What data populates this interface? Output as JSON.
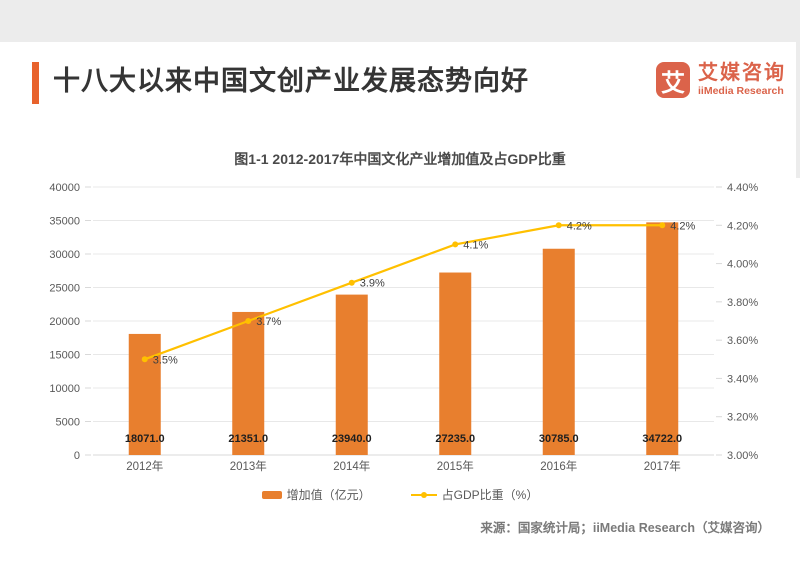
{
  "header": {
    "title": "十八大以来中国文创产业发展态势向好"
  },
  "logo": {
    "icon_char": "艾",
    "name_cn": "艾媒咨询",
    "name_en": "iiMedia Research"
  },
  "source_note": "来源：国家统计局；iiMedia Research（艾媒咨询）",
  "colors": {
    "accent_bar": "#E8622C",
    "bar_fill": "#E87F2E",
    "line": "#FFC000",
    "logo": "#DB634A",
    "grid": "#E8E8E8",
    "axis_line": "#D9D9D9",
    "tick_text": "#595959",
    "bar_label_text": "#1F1F1F",
    "line_label_text": "#404040",
    "top_band": "#ECECEC"
  },
  "chart_data": {
    "type": "bar",
    "combo": "bar+line",
    "title": "图1-1 2012-2017年中国文化产业增加值及占GDP比重",
    "categories": [
      "2012年",
      "2013年",
      "2014年",
      "2015年",
      "2016年",
      "2017年"
    ],
    "series": [
      {
        "name": "增加值（亿元）",
        "type": "bar",
        "axis": "left",
        "values": [
          18071.0,
          21351.0,
          23940.0,
          27235.0,
          30785.0,
          34722.0
        ],
        "labels": [
          "18071.0",
          "21351.0",
          "23940.0",
          "27235.0",
          "30785.0",
          "34722.0"
        ],
        "color": "#E87F2E"
      },
      {
        "name": "占GDP比重（%）",
        "type": "line",
        "axis": "right",
        "values": [
          3.5,
          3.7,
          3.9,
          4.1,
          4.2,
          4.2
        ],
        "labels": [
          "3.5%",
          "3.7%",
          "3.9%",
          "4.1%",
          "4.2%",
          "4.2%"
        ],
        "color": "#FFC000"
      }
    ],
    "left_axis": {
      "min": 0,
      "max": 40000,
      "step": 5000,
      "ticks": [
        "0",
        "5000",
        "10000",
        "15000",
        "20000",
        "25000",
        "30000",
        "35000",
        "40000"
      ]
    },
    "right_axis": {
      "min": 3.0,
      "max": 4.4,
      "step": 0.2,
      "ticks": [
        "3.00%",
        "3.20%",
        "3.40%",
        "3.60%",
        "3.80%",
        "4.00%",
        "4.20%",
        "4.40%"
      ]
    },
    "grid": true,
    "legend_position": "bottom"
  }
}
